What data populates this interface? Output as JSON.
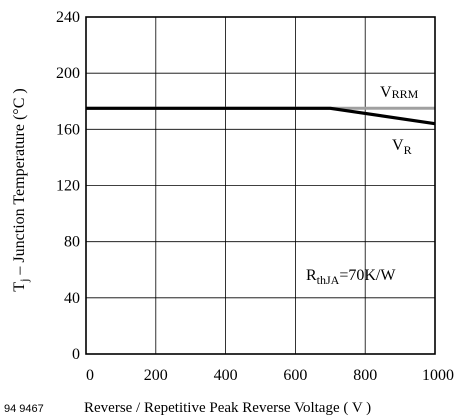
{
  "figure_code": "94 9467",
  "chart_data": {
    "type": "line",
    "title": "",
    "xlabel": "Reverse / Repetitive Peak Reverse Voltage ( V )",
    "ylabel": {
      "prefix": "T",
      "sub": "j",
      "suffix": " – Junction Temperature (°C )"
    },
    "xlim": [
      0,
      1000
    ],
    "ylim": [
      0,
      240
    ],
    "x_ticks": [
      0,
      200,
      400,
      600,
      800,
      1000
    ],
    "y_ticks": [
      0,
      40,
      80,
      120,
      160,
      200,
      240
    ],
    "grid": true,
    "series": [
      {
        "name": "VRRM",
        "label_main": "V",
        "label_sub": "RRM",
        "color": "#a0a0a0",
        "x": [
          0,
          700,
          1000
        ],
        "y": [
          175,
          175,
          175
        ]
      },
      {
        "name": "VR",
        "label_main": "V",
        "label_sub": "R",
        "color": "#000000",
        "x": [
          0,
          700,
          1000
        ],
        "y": [
          175,
          175,
          164
        ]
      }
    ],
    "annotation": {
      "main": "R",
      "sub": "thJA",
      "rest": "=70K/W"
    }
  }
}
